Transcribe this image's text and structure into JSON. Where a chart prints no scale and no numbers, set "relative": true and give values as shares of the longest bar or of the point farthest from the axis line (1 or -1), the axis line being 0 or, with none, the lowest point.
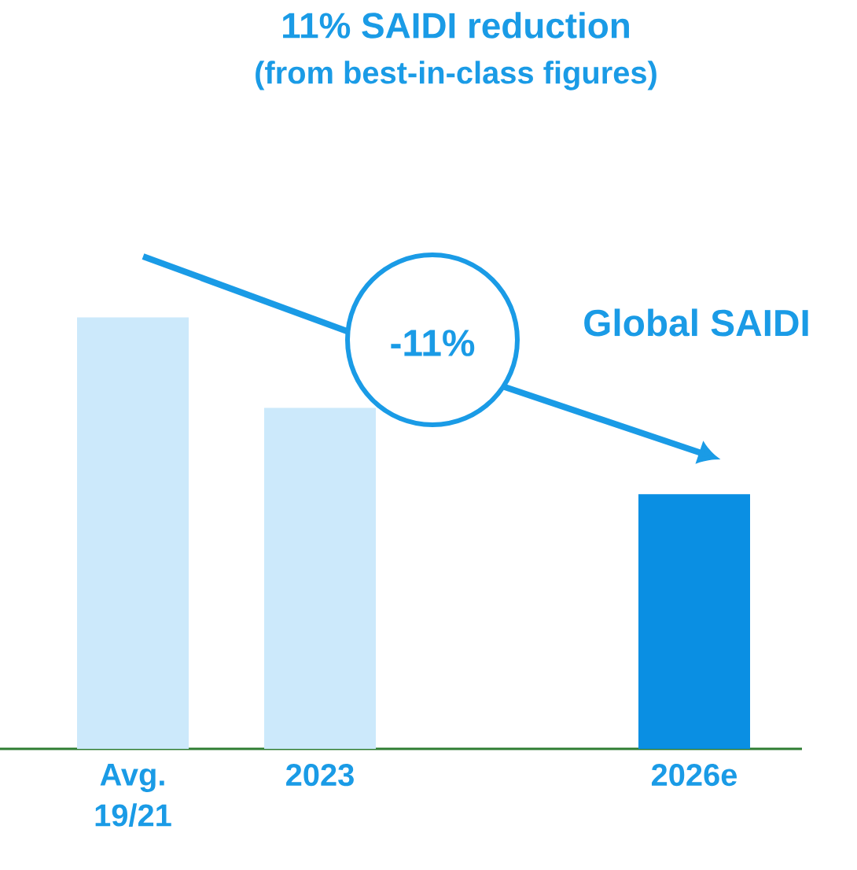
{
  "chart_data": {
    "type": "bar",
    "title": "11% SAIDI reduction",
    "subtitle": "(from best-in-class figures)",
    "categories": [
      "Avg. 19/21",
      "2023",
      null,
      "2026e"
    ],
    "values": [
      1,
      0.79,
      null,
      0.59
    ],
    "colors": [
      "#cce9fb",
      "#cce9fb",
      null,
      "#0a8fe3"
    ],
    "relative": true,
    "annotations": [
      "-11%",
      "Global SAIDI"
    ]
  }
}
